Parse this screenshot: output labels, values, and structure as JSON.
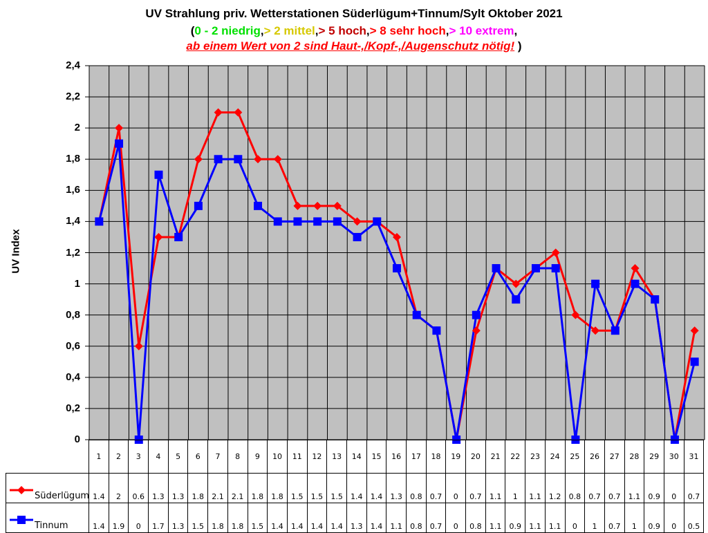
{
  "header": {
    "title": "UV Strahlung priv. Wetterstationen Süderlügum+Tinnum/Sylt Oktober 2021",
    "scale": {
      "open": "(",
      "low": "0 - 2 niedrig",
      "sep1": ",",
      "mid": "> 2 mittel",
      "sep2": ",",
      "high": "> 5 hoch",
      "sep3": ",",
      "veryhigh": "> 8 sehr hoch",
      "sep4": ",",
      "extreme": "> 10 extrem",
      "sep5": ","
    },
    "warning": "ab einem Wert von 2 sind Haut-,/Kopf-,/Augenschutz nötig!",
    "warning_close": " )"
  },
  "colors": {
    "plot_bg": "#c0c0c0",
    "grid": "#000000",
    "suederluegum": "#ff0000",
    "tinnum": "#0000ff",
    "low": "#00e000",
    "mid": "#d6c800",
    "high": "#c00000",
    "veryhigh": "#ff0000",
    "extreme": "#ff00ff"
  },
  "chart_data": {
    "type": "line",
    "title": "UV Strahlung priv. Wetterstationen Süderlügum+Tinnum/Sylt Oktober 2021",
    "xlabel": "",
    "ylabel": "UV Index",
    "ylim": [
      0,
      2.4
    ],
    "yticks": [
      "0",
      "0,2",
      "0,4",
      "0,6",
      "0,8",
      "1",
      "1,2",
      "1,4",
      "1,6",
      "1,8",
      "2",
      "2,2",
      "2,4"
    ],
    "grid": true,
    "legend_position": "data-table",
    "categories": [
      "1",
      "2",
      "3",
      "4",
      "5",
      "6",
      "7",
      "8",
      "9",
      "10",
      "11",
      "12",
      "13",
      "14",
      "15",
      "16",
      "17",
      "18",
      "19",
      "20",
      "21",
      "22",
      "23",
      "24",
      "25",
      "26",
      "27",
      "28",
      "29",
      "30",
      "31"
    ],
    "series": [
      {
        "name": "Süderlügum",
        "color": "#ff0000",
        "marker": "diamond",
        "values": [
          1.4,
          2,
          0.6,
          1.3,
          1.3,
          1.8,
          2.1,
          2.1,
          1.8,
          1.8,
          1.5,
          1.5,
          1.5,
          1.4,
          1.4,
          1.3,
          0.8,
          0.7,
          0,
          0.7,
          1.1,
          1,
          1.1,
          1.2,
          0.8,
          0.7,
          0.7,
          1.1,
          0.9,
          0,
          0.7
        ]
      },
      {
        "name": "Tinnum",
        "color": "#0000ff",
        "marker": "square",
        "values": [
          1.4,
          1.9,
          0,
          1.7,
          1.3,
          1.5,
          1.8,
          1.8,
          1.5,
          1.4,
          1.4,
          1.4,
          1.4,
          1.3,
          1.4,
          1.1,
          0.8,
          0.7,
          0,
          0.8,
          1.1,
          0.9,
          1.1,
          1.1,
          0,
          1,
          0.7,
          1,
          0.9,
          0,
          0.5
        ]
      }
    ]
  }
}
